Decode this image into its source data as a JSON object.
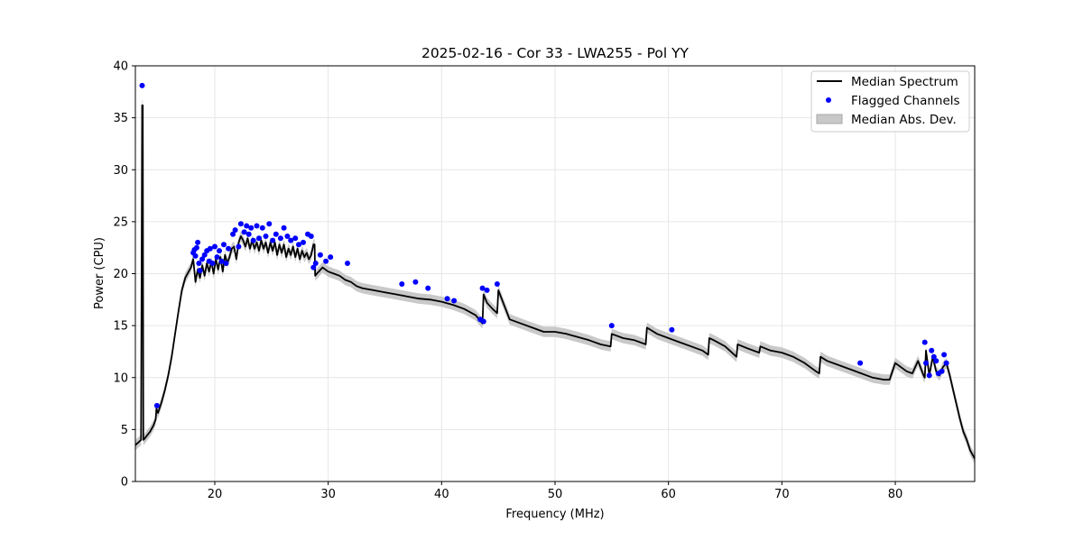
{
  "chart_data": {
    "type": "line",
    "title": "2025-02-16 - Cor 33 - LWA255 - Pol YY",
    "xlabel": "Frequency (MHz)",
    "ylabel": "Power (CPU)",
    "xlim": [
      13,
      87
    ],
    "ylim": [
      0,
      40
    ],
    "xticks": [
      20,
      30,
      40,
      50,
      60,
      70,
      80
    ],
    "yticks": [
      0,
      5,
      10,
      15,
      20,
      25,
      30,
      35,
      40
    ],
    "grid": true,
    "legend_position": "top-right",
    "colors": {
      "median": "#000000",
      "flagged": "#0000ff",
      "mad": "#bfbfbf"
    },
    "series": [
      {
        "name": "Median Spectrum",
        "kind": "line",
        "x": [
          13.0,
          13.5,
          13.6,
          13.65,
          13.7,
          13.8,
          14.0,
          14.3,
          14.6,
          14.8,
          14.85,
          15.0,
          15.3,
          15.6,
          15.9,
          16.2,
          16.5,
          16.8,
          17.1,
          17.4,
          17.7,
          17.9,
          18.1,
          18.3,
          18.5,
          18.7,
          18.9,
          19.1,
          19.3,
          19.5,
          19.7,
          19.9,
          20.1,
          20.3,
          20.5,
          20.7,
          20.9,
          21.1,
          21.3,
          21.5,
          21.7,
          21.9,
          22.1,
          22.3,
          22.5,
          22.7,
          22.9,
          23.1,
          23.3,
          23.5,
          23.7,
          23.9,
          24.1,
          24.3,
          24.5,
          24.7,
          24.9,
          25.1,
          25.3,
          25.5,
          25.7,
          25.9,
          26.1,
          26.3,
          26.5,
          26.7,
          26.9,
          27.1,
          27.3,
          27.5,
          27.7,
          27.9,
          28.1,
          28.3,
          28.5,
          28.7,
          28.8,
          28.85,
          29.0,
          29.5,
          30.0,
          30.5,
          31.0,
          31.5,
          32.0,
          32.5,
          33.0,
          34.0,
          35.0,
          36.0,
          37.0,
          38.0,
          39.0,
          40.0,
          41.0,
          42.0,
          43.0,
          43.6,
          43.7,
          44.0,
          44.5,
          44.9,
          45.0,
          46.0,
          47.0,
          48.0,
          49.0,
          50.0,
          51.0,
          52.0,
          53.0,
          54.0,
          54.9,
          55.0,
          56.0,
          57.0,
          58.0,
          58.1,
          59.0,
          60.0,
          61.0,
          62.0,
          63.0,
          63.5,
          63.6,
          64.0,
          65.0,
          66.0,
          66.1,
          67.0,
          68.0,
          68.1,
          69.0,
          70.0,
          71.0,
          72.0,
          73.0,
          73.3,
          73.4,
          74.0,
          75.0,
          76.0,
          77.0,
          78.0,
          79.0,
          79.5,
          80.0,
          81.0,
          81.5,
          82.0,
          82.5,
          82.6,
          82.7,
          83.0,
          83.3,
          83.6,
          83.9,
          84.2,
          84.5,
          84.8,
          85.1,
          85.4,
          85.7,
          86.0,
          86.3,
          86.6,
          87.0
        ],
        "y": [
          3.5,
          4.0,
          36.2,
          36.2,
          4.0,
          4.1,
          4.4,
          4.8,
          5.4,
          6.0,
          7.0,
          6.6,
          7.6,
          8.8,
          10.2,
          12.0,
          14.2,
          16.4,
          18.4,
          19.6,
          20.2,
          20.6,
          21.4,
          19.2,
          20.4,
          19.6,
          20.8,
          19.8,
          21.0,
          20.2,
          21.2,
          20.0,
          21.4,
          20.4,
          21.6,
          20.2,
          21.8,
          21.0,
          21.6,
          22.4,
          22.6,
          21.4,
          23.0,
          23.6,
          23.2,
          22.6,
          23.4,
          22.4,
          23.2,
          22.4,
          23.0,
          22.2,
          23.2,
          22.4,
          23.0,
          22.0,
          23.0,
          22.2,
          23.0,
          21.8,
          22.8,
          22.0,
          22.8,
          21.6,
          22.4,
          21.8,
          22.6,
          21.6,
          22.4,
          21.4,
          22.2,
          21.6,
          22.0,
          21.4,
          21.8,
          22.8,
          22.8,
          19.8,
          20.0,
          20.6,
          20.2,
          20.0,
          19.8,
          19.4,
          19.2,
          18.8,
          18.6,
          18.4,
          18.2,
          18.0,
          17.8,
          17.6,
          17.5,
          17.3,
          17.0,
          16.6,
          16.0,
          15.2,
          18.0,
          17.2,
          16.6,
          16.2,
          18.4,
          15.6,
          15.2,
          14.8,
          14.4,
          14.4,
          14.2,
          13.9,
          13.6,
          13.2,
          13.0,
          14.2,
          13.8,
          13.6,
          13.2,
          14.8,
          14.2,
          13.8,
          13.4,
          13.0,
          12.6,
          12.2,
          13.8,
          13.6,
          13.0,
          12.0,
          13.2,
          12.8,
          12.4,
          13.0,
          12.6,
          12.4,
          12.0,
          11.4,
          10.6,
          10.4,
          12.0,
          11.6,
          11.2,
          10.8,
          10.4,
          10.0,
          9.8,
          9.8,
          11.4,
          10.6,
          10.4,
          11.6,
          10.2,
          10.0,
          12.6,
          10.2,
          12.0,
          10.6,
          10.2,
          11.0,
          11.4,
          10.2,
          8.8,
          7.4,
          6.0,
          4.8,
          4.0,
          3.0,
          2.2
        ]
      },
      {
        "name": "Flagged Channels",
        "kind": "scatter",
        "x": [
          13.6,
          14.9,
          18.1,
          18.2,
          18.3,
          18.4,
          18.5,
          18.6,
          18.7,
          18.9,
          19.1,
          19.3,
          19.5,
          19.6,
          19.8,
          20.0,
          20.2,
          20.4,
          20.6,
          20.8,
          21.0,
          21.2,
          21.6,
          21.8,
          22.1,
          22.3,
          22.6,
          22.8,
          23.0,
          23.2,
          23.4,
          23.7,
          23.9,
          24.2,
          24.5,
          24.8,
          25.1,
          25.4,
          25.8,
          26.1,
          26.4,
          26.7,
          27.1,
          27.4,
          27.8,
          28.2,
          28.5,
          28.7,
          28.9,
          29.3,
          29.8,
          30.2,
          31.7,
          36.5,
          37.7,
          38.8,
          40.5,
          41.1,
          43.4,
          43.6,
          43.7,
          44.0,
          44.9,
          55.0,
          60.3,
          76.9,
          82.6,
          82.7,
          83.0,
          83.2,
          83.4,
          83.6,
          83.8,
          84.1,
          84.3,
          84.5
        ],
        "y": [
          38.1,
          7.3,
          22.0,
          22.3,
          21.7,
          22.5,
          23.0,
          21.0,
          20.3,
          21.4,
          21.8,
          22.2,
          21.2,
          22.4,
          21.0,
          22.6,
          21.6,
          22.2,
          21.2,
          22.8,
          21.0,
          22.4,
          23.8,
          24.2,
          22.6,
          24.8,
          24.0,
          24.6,
          23.8,
          24.4,
          23.2,
          24.6,
          23.4,
          24.4,
          23.6,
          24.8,
          23.2,
          23.8,
          23.4,
          24.4,
          23.6,
          23.2,
          23.4,
          22.8,
          23.0,
          23.8,
          23.6,
          20.6,
          21.0,
          21.8,
          21.2,
          21.6,
          21.0,
          19.0,
          19.2,
          18.6,
          17.6,
          17.4,
          15.6,
          18.6,
          15.4,
          18.4,
          19.0,
          15.0,
          14.6,
          11.4,
          13.4,
          11.4,
          10.2,
          12.6,
          12.0,
          11.6,
          10.4,
          10.6,
          12.2,
          11.4
        ]
      },
      {
        "name": "Median Abs. Dev.",
        "kind": "band",
        "spread": 0.5
      }
    ]
  }
}
